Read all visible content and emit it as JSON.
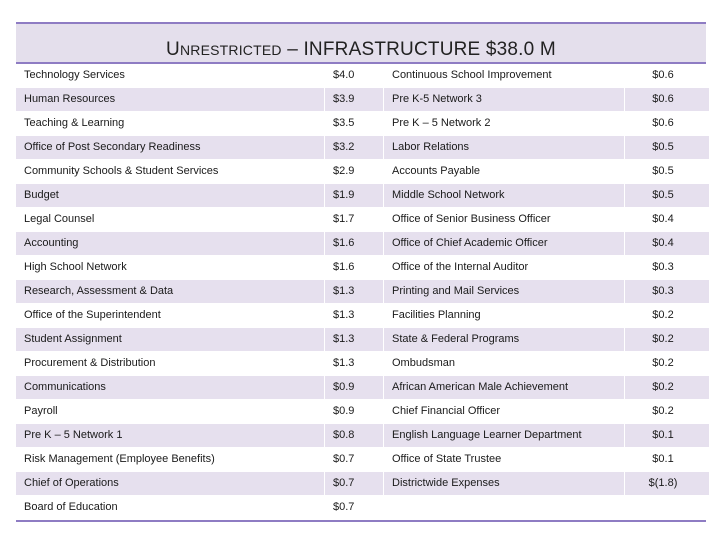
{
  "title": {
    "first_letter": "U",
    "small_caps": "NRESTRICTED",
    "rest": " – INFRASTRUCTURE $38.0 M"
  },
  "rows": [
    {
      "left_name": "Technology Services",
      "left_amount": "$4.0",
      "right_name": "Continuous School Improvement",
      "right_amount": "$0.6"
    },
    {
      "left_name": "Human Resources",
      "left_amount": "$3.9",
      "right_name": "Pre K-5 Network 3",
      "right_amount": "$0.6"
    },
    {
      "left_name": "Teaching & Learning",
      "left_amount": "$3.5",
      "right_name": "Pre K – 5 Network 2",
      "right_amount": "$0.6"
    },
    {
      "left_name": "Office of Post Secondary Readiness",
      "left_amount": "$3.2",
      "right_name": "Labor Relations",
      "right_amount": "$0.5"
    },
    {
      "left_name": "Community Schools & Student Services",
      "left_amount": "$2.9",
      "right_name": "Accounts Payable",
      "right_amount": "$0.5"
    },
    {
      "left_name": "Budget",
      "left_amount": "$1.9",
      "right_name": "Middle School Network",
      "right_amount": "$0.5"
    },
    {
      "left_name": "Legal Counsel",
      "left_amount": "$1.7",
      "right_name": "Office of Senior Business Officer",
      "right_amount": "$0.4"
    },
    {
      "left_name": "Accounting",
      "left_amount": "$1.6",
      "right_name": "Office of Chief Academic Officer",
      "right_amount": "$0.4"
    },
    {
      "left_name": "High School Network",
      "left_amount": "$1.6",
      "right_name": "Office of the Internal Auditor",
      "right_amount": "$0.3"
    },
    {
      "left_name": "Research, Assessment & Data",
      "left_amount": "$1.3",
      "right_name": "Printing and Mail Services",
      "right_amount": "$0.3"
    },
    {
      "left_name": "Office of the Superintendent",
      "left_amount": "$1.3",
      "right_name": "Facilities Planning",
      "right_amount": "$0.2"
    },
    {
      "left_name": "Student Assignment",
      "left_amount": "$1.3",
      "right_name": "State & Federal Programs",
      "right_amount": "$0.2"
    },
    {
      "left_name": "Procurement & Distribution",
      "left_amount": "$1.3",
      "right_name": "Ombudsman",
      "right_amount": "$0.2"
    },
    {
      "left_name": "Communications",
      "left_amount": "$0.9",
      "right_name": "African American Male Achievement",
      "right_amount": "$0.2"
    },
    {
      "left_name": "Payroll",
      "left_amount": "$0.9",
      "right_name": "Chief Financial Officer",
      "right_amount": "$0.2"
    },
    {
      "left_name": "Pre K – 5 Network 1",
      "left_amount": "$0.8",
      "right_name": "English Language Learner Department",
      "right_amount": "$0.1"
    },
    {
      "left_name": "Risk Management  (Employee Benefits)",
      "left_amount": "$0.7",
      "right_name": "Office of State Trustee",
      "right_amount": "$0.1"
    },
    {
      "left_name": "Chief of Operations",
      "left_amount": "$0.7",
      "right_name": "Districtwide Expenses",
      "right_amount": "$(1.8)"
    },
    {
      "left_name": "Board of Education",
      "left_amount": "$0.7",
      "right_name": "",
      "right_amount": ""
    }
  ]
}
